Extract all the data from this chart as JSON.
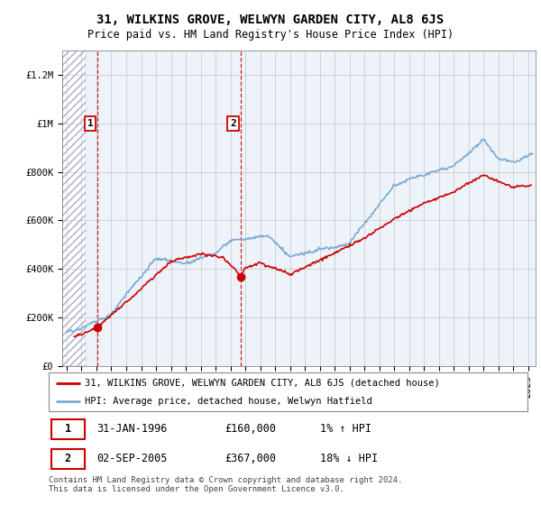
{
  "title": "31, WILKINS GROVE, WELWYN GARDEN CITY, AL8 6JS",
  "subtitle": "Price paid vs. HM Land Registry's House Price Index (HPI)",
  "ylabel_ticks": [
    "£0",
    "£200K",
    "£400K",
    "£600K",
    "£800K",
    "£1M",
    "£1.2M"
  ],
  "ytick_vals": [
    0,
    200000,
    400000,
    600000,
    800000,
    1000000,
    1200000
  ],
  "ylim": [
    0,
    1300000
  ],
  "xlim_start": 1993.7,
  "xlim_end": 2025.5,
  "marker1_x": 1996.08,
  "marker1_y": 160000,
  "marker2_x": 2005.67,
  "marker2_y": 367000,
  "vline1_x": 1996.08,
  "vline2_x": 2005.67,
  "hpi_color": "#7aaad4",
  "price_color": "#cc0000",
  "legend_price_label": "31, WILKINS GROVE, WELWYN GARDEN CITY, AL8 6JS (detached house)",
  "legend_hpi_label": "HPI: Average price, detached house, Welwyn Hatfield",
  "annotation1_text": "1",
  "annotation2_text": "2",
  "table_row1": [
    "1",
    "31-JAN-1996",
    "£160,000",
    "1% ↑ HPI"
  ],
  "table_row2": [
    "2",
    "02-SEP-2005",
    "£367,000",
    "18% ↓ HPI"
  ],
  "footer": "Contains HM Land Registry data © Crown copyright and database right 2024.\nThis data is licensed under the Open Government Licence v3.0.",
  "hatch_end": 1995.3,
  "bg_light_color": "#dce8f5",
  "grid_color": "#bbbbbb",
  "title_fontsize": 10,
  "subtitle_fontsize": 8.5,
  "tick_fontsize": 7.5
}
